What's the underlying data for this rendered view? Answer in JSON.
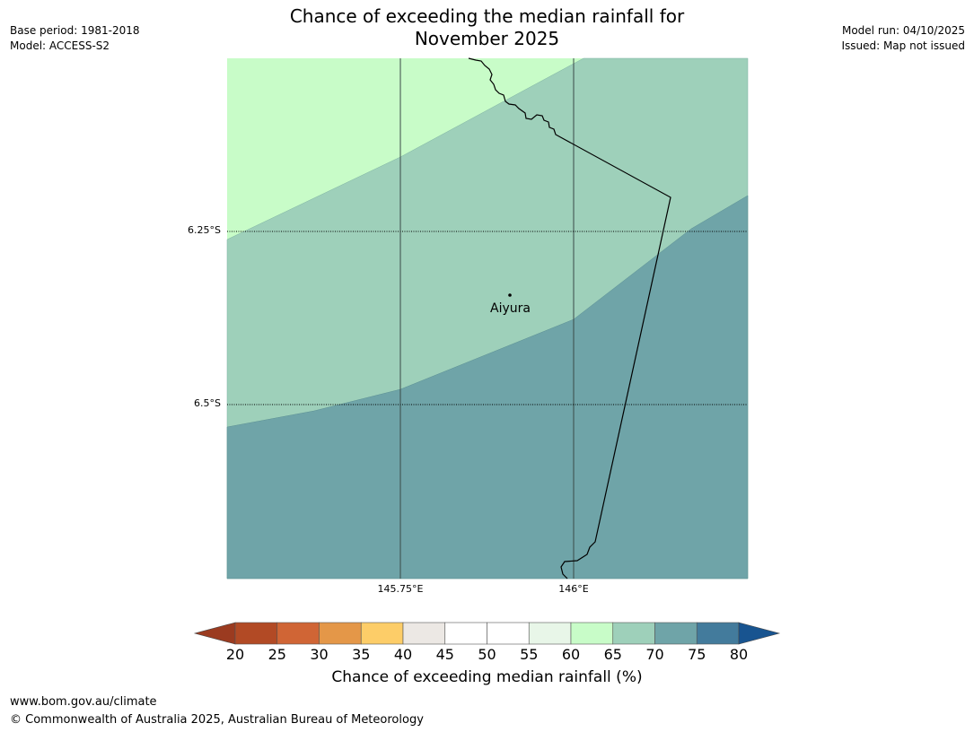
{
  "header": {
    "title_line1": "Chance of exceeding the median rainfall for",
    "title_line2": "November 2025",
    "base_period": "Base period: 1981-2018",
    "model": "Model: ACCESS-S2",
    "model_run": "Model run: 04/10/2025",
    "issued": "Issued: Map not issued"
  },
  "map": {
    "lat_labels": [
      "6.25°S",
      "6.5°S"
    ],
    "lon_labels": [
      "145.75°E",
      "146°E"
    ],
    "place": "Aiyura",
    "colors": {
      "band_60_65": "#c8fcc8",
      "band_65_70": "#9ed0ba",
      "band_70_75": "#6fa4a8"
    }
  },
  "colorbar": {
    "label": "Chance of exceeding median rainfall (%)",
    "ticks": [
      "20",
      "25",
      "30",
      "35",
      "40",
      "45",
      "50",
      "55",
      "60",
      "65",
      "70",
      "75",
      "80"
    ],
    "colors": [
      "#b24a25",
      "#d06535",
      "#e49748",
      "#fdcd68",
      "#ece8e4",
      "#ffffff",
      "#ffffff",
      "#e8f6e8",
      "#c8fcc8",
      "#9ed0ba",
      "#6fa4a8",
      "#437b9c"
    ],
    "under_color": "#9b3b20",
    "over_color": "#185490"
  },
  "footer": {
    "url": "www.bom.gov.au/climate",
    "copyright": "© Commonwealth of Australia 2025, Australian Bureau of Meteorology"
  }
}
